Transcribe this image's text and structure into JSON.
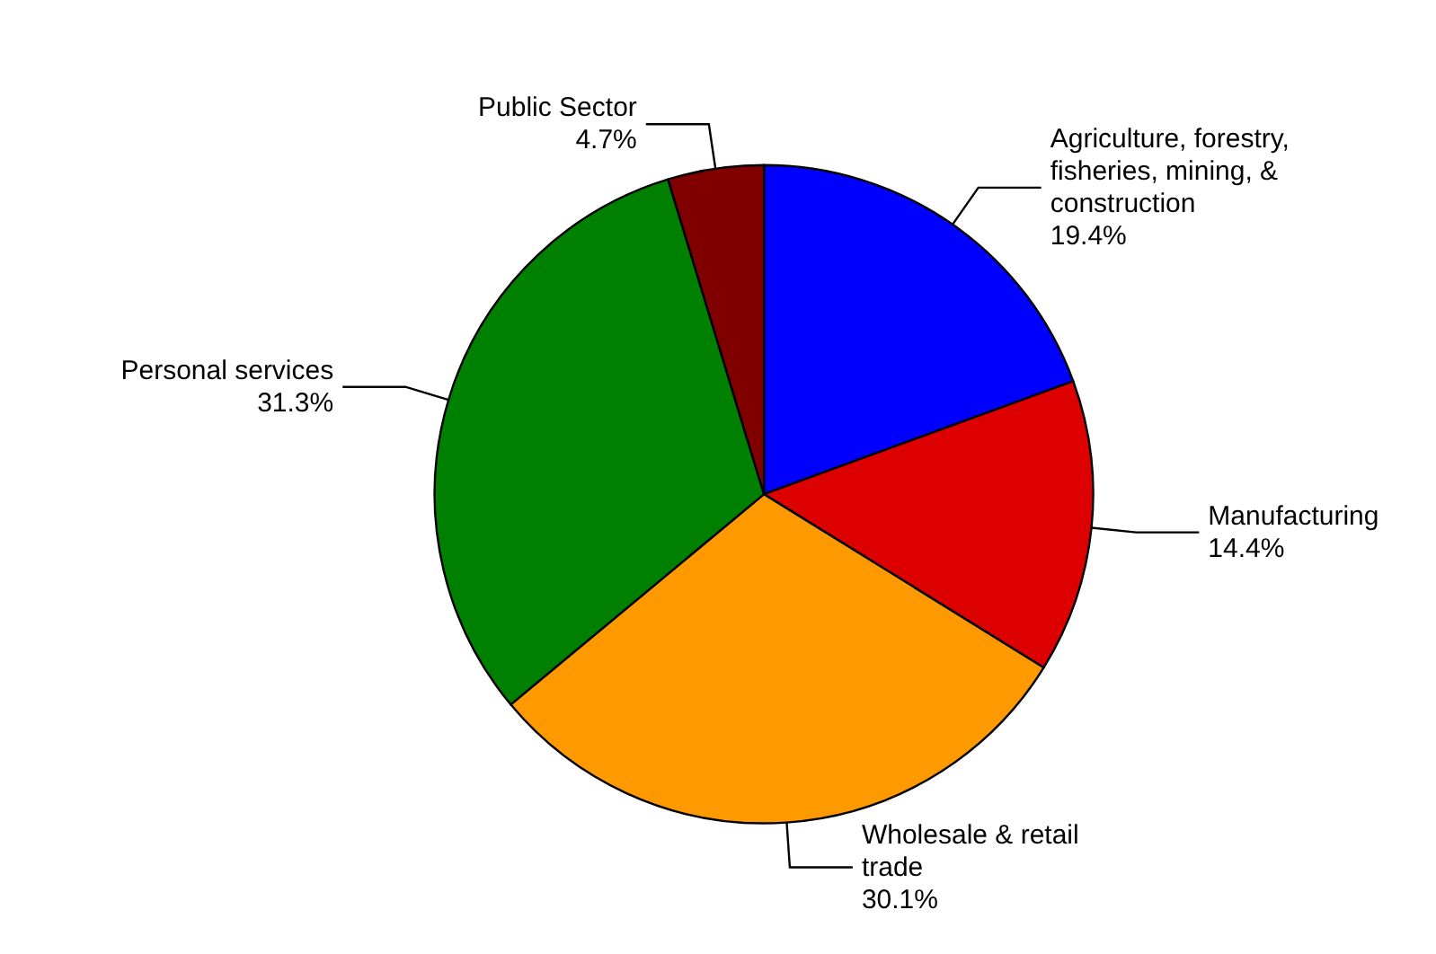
{
  "chart_data": {
    "type": "pie",
    "categories": [
      "Agriculture, forestry, fisheries, mining, & construction",
      "Manufacturing",
      "Wholesale & retail trade",
      "Personal services",
      "Public Sector"
    ],
    "values": [
      19.4,
      14.4,
      30.1,
      31.3,
      4.7
    ],
    "colors": [
      "#0000ff",
      "#dd0000",
      "#ff9900",
      "#008000",
      "#800000"
    ],
    "value_labels": [
      "19.4%",
      "14.4%",
      "30.1%",
      "31.3%",
      "4.7%"
    ]
  }
}
